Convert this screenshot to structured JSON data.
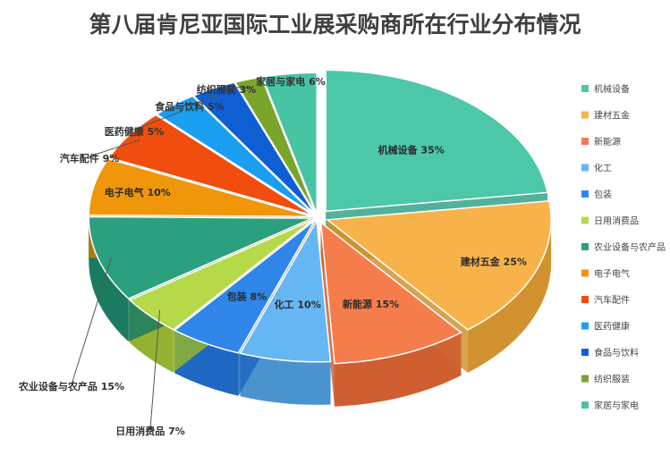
{
  "chart_data": {
    "type": "pie",
    "title": "第八届肯尼亚国际工业展采购商所在行业分布情况",
    "unit": "%",
    "legend_position": "right",
    "slices": [
      {
        "label": "机械设备",
        "value": 35,
        "color": "#4cc7a8",
        "side": "#34a388",
        "data_label": "机械设备 35%"
      },
      {
        "label": "建材五金",
        "value": 25,
        "color": "#f7b34a",
        "side": "#d1922f",
        "data_label": "建材五金 25%"
      },
      {
        "label": "新能源",
        "value": 15,
        "color": "#f57d4c",
        "side": "#cf5e31",
        "data_label": "新能源 15%"
      },
      {
        "label": "化工",
        "value": 10,
        "color": "#67b6f4",
        "side": "#4a93cf",
        "data_label": "化工 10%"
      },
      {
        "label": "包装",
        "value": 8,
        "color": "#2f86e8",
        "side": "#1e68c1",
        "data_label": "包装 8%"
      },
      {
        "label": "日用消费品",
        "value": 7,
        "color": "#b6d94a",
        "side": "#93b330",
        "data_label": "日用消费品 7%"
      },
      {
        "label": "农业设备与农产品",
        "value": 15,
        "color": "#2aa07f",
        "side": "#1b7b61",
        "data_label": "农业设备与农产品 15%"
      },
      {
        "label": "电子电气",
        "value": 10,
        "color": "#f0960a",
        "side": "#c87906",
        "data_label": "电子电气 10%"
      },
      {
        "label": "汽车配件",
        "value": 9,
        "color": "#f04d0e",
        "side": "#c43b08",
        "data_label": "汽车配件 9%"
      },
      {
        "label": "医药健康",
        "value": 5,
        "color": "#1a9ef0",
        "side": "#0f7fc4",
        "data_label": "医药健康 5%"
      },
      {
        "label": "食品与饮料",
        "value": 5,
        "color": "#0f5fd4",
        "side": "#0a47a3",
        "data_label": "食品与饮料 5%"
      },
      {
        "label": "纺织服装",
        "value": 3,
        "color": "#78a52a",
        "side": "#5b8119",
        "data_label": "纺织服装 3%"
      },
      {
        "label": "家居与家电",
        "value": 6,
        "color": "#47c4a4",
        "side": "#2f9e83",
        "data_label": "家居与家电 6%"
      }
    ]
  }
}
